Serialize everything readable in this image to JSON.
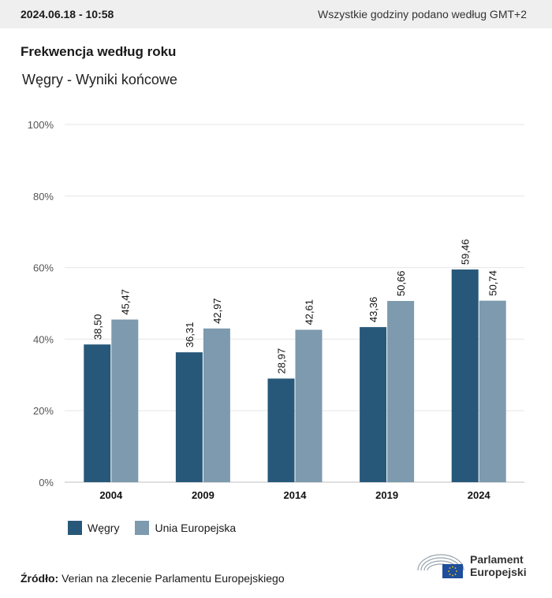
{
  "header": {
    "timestamp": "2024.06.18 - 10:58",
    "timezone_note": "Wszystkie godziny podano według GMT+2"
  },
  "title": "Frekwencja według roku",
  "subtitle": "Węgry - Wyniki końcowe",
  "chart_data": {
    "type": "bar",
    "categories": [
      "2004",
      "2009",
      "2014",
      "2019",
      "2024"
    ],
    "series": [
      {
        "name": "Węgry",
        "color": "#27587a",
        "values": [
          38.5,
          36.31,
          28.97,
          43.36,
          59.46
        ],
        "labels": [
          "38,50",
          "36,31",
          "28,97",
          "43,36",
          "59,46"
        ]
      },
      {
        "name": "Unia Europejska",
        "color": "#7d9aae",
        "values": [
          45.47,
          42.97,
          42.61,
          50.66,
          50.74
        ],
        "labels": [
          "45,47",
          "42,97",
          "42,61",
          "50,66",
          "50,74"
        ]
      }
    ],
    "yticks": [
      "0%",
      "20%",
      "40%",
      "60%",
      "80%",
      "100%"
    ],
    "ylim": [
      0,
      100
    ],
    "grid": true,
    "legend_position": "bottom-left"
  },
  "source": {
    "label": "Źródło:",
    "text": "Verian na zlecenie Parlamentu Europejskiego"
  },
  "logo": {
    "line1": "Parlament",
    "line2": "Europejski"
  }
}
